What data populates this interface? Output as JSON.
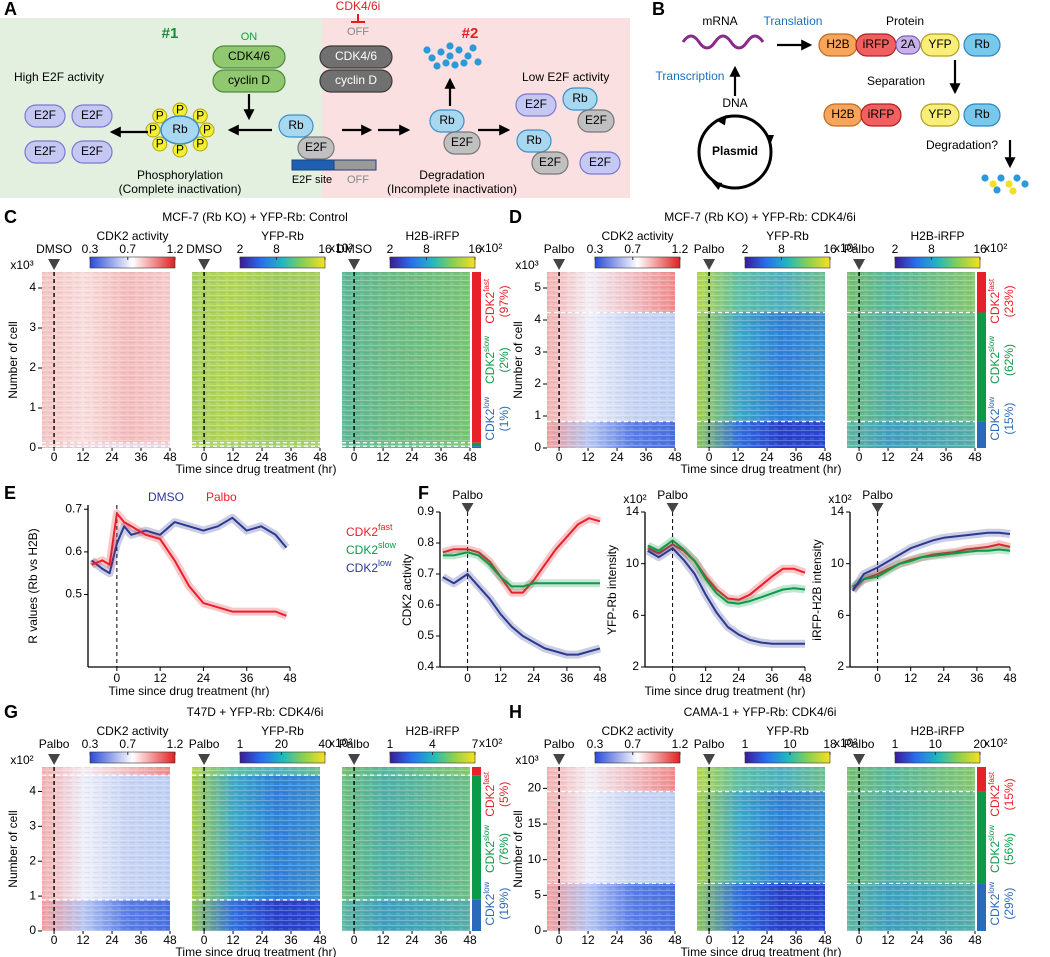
{
  "panels": {
    "A": {
      "label": "A",
      "region_1": "#1",
      "region_2": "#2",
      "on": "ON",
      "inhibitor": "CDK4/6i",
      "off": "OFF",
      "cdk": "CDK4/6",
      "cyclin": "cyclin D",
      "high": "High E2F activity",
      "low": "Low E2F activity",
      "e2f": "E2F",
      "rb": "Rb",
      "p": "P",
      "phosphorylation": "Phosphorylation",
      "complete": "(Complete inactivation)",
      "degradation": "Degradation",
      "incomplete": "(Incomplete inactivation)",
      "e2f_site": "E2F site",
      "site_off": "OFF"
    },
    "B": {
      "label": "B",
      "mrna": "mRNA",
      "translation": "Translation",
      "protein": "Protein",
      "h2b": "H2B",
      "irfp": "iRFP",
      "p2a": "2A",
      "yfp": "YFP",
      "rb": "Rb",
      "transcription": "Transcription",
      "dna": "DNA",
      "plasmid": "Plasmid",
      "separation": "Separation",
      "degradation": "Degradation?"
    },
    "C": {
      "label": "C",
      "title": "MCF-7 (Rb KO) + YFP-Rb: Control",
      "treatment": "DMSO",
      "y_label": "Number of cell",
      "y_multiplier": "x10³",
      "ylim": [
        0,
        4.4
      ],
      "yticks": [
        0,
        1,
        2,
        3,
        4
      ],
      "xlim": [
        -5,
        48
      ],
      "xticks": [
        0,
        12,
        24,
        36,
        48
      ],
      "x_label": "Time since drug treatment (hr)",
      "maps": [
        {
          "name": "CDK2 activity",
          "ticks": [
            0.3,
            0.7,
            1.2
          ]
        },
        {
          "name": "YFP-Rb",
          "ticks": [
            2,
            8,
            16
          ],
          "multiplier": "x10²"
        },
        {
          "name": "H2B-iRFP",
          "ticks": [
            2,
            8,
            16
          ],
          "multiplier": "x10²"
        }
      ],
      "groups": [
        {
          "base": "CDK2",
          "sup": "fast",
          "share": 97,
          "share_label": "(97%)",
          "color": "#e8202a"
        },
        {
          "base": "CDK2",
          "sup": "slow",
          "share": 2,
          "share_label": "(2%)",
          "color": "#0a9a48"
        },
        {
          "base": "CDK2",
          "sup": "low",
          "share": 1,
          "share_label": "(1%)",
          "color": "#2a6ab8"
        }
      ]
    },
    "D": {
      "label": "D",
      "title": "MCF-7 (Rb KO) + YFP-Rb: CDK4/6i",
      "treatment": "Palbo",
      "y_label": "Number of cell",
      "y_multiplier": "x10³",
      "ylim": [
        0,
        5.5
      ],
      "yticks": [
        0,
        1,
        2,
        3,
        4,
        5
      ],
      "xlim": [
        -5,
        48
      ],
      "xticks": [
        0,
        12,
        24,
        36,
        48
      ],
      "x_label": "Time since drug treatment (hr)",
      "maps": [
        {
          "name": "CDK2 activity",
          "ticks": [
            0.3,
            0.7,
            1.2
          ]
        },
        {
          "name": "YFP-Rb",
          "ticks": [
            2,
            8,
            16
          ],
          "multiplier": "x10²"
        },
        {
          "name": "H2B-iRFP",
          "ticks": [
            2,
            8,
            16
          ],
          "multiplier": "x10²"
        }
      ],
      "groups": [
        {
          "base": "CDK2",
          "sup": "fast",
          "share": 23,
          "share_label": "(23%)",
          "color": "#e8202a"
        },
        {
          "base": "CDK2",
          "sup": "slow",
          "share": 62,
          "share_label": "(62%)",
          "color": "#0a9a48"
        },
        {
          "base": "CDK2",
          "sup": "low",
          "share": 15,
          "share_label": "(15%)",
          "color": "#2a6ab8"
        }
      ]
    },
    "E": {
      "label": "E",
      "y_label": "R values (Rb vs H2B)",
      "x_label": "Time since drug treatment (hr)",
      "xlim": [
        -8,
        48
      ],
      "xticks": [
        0,
        12,
        24,
        36,
        48
      ],
      "ylim": [
        0.33,
        0.71
      ],
      "yticks": [
        0.5,
        0.6,
        0.7
      ],
      "x": [
        -7,
        -4,
        -2,
        0,
        2,
        4,
        8,
        12,
        16,
        20,
        24,
        28,
        32,
        36,
        40,
        44,
        47
      ],
      "series": [
        {
          "name": "DMSO",
          "color": "#2b3990",
          "values": [
            0.58,
            0.56,
            0.55,
            0.62,
            0.66,
            0.64,
            0.65,
            0.64,
            0.67,
            0.66,
            0.65,
            0.66,
            0.68,
            0.65,
            0.66,
            0.64,
            0.61
          ]
        },
        {
          "name": "Palbo",
          "color": "#e8202a",
          "values": [
            0.57,
            0.58,
            0.57,
            0.69,
            0.67,
            0.66,
            0.64,
            0.63,
            0.58,
            0.52,
            0.48,
            0.47,
            0.46,
            0.46,
            0.46,
            0.46,
            0.45
          ]
        }
      ]
    },
    "F": {
      "label": "F",
      "treatment": "Palbo",
      "x_label": "Time since drug treatment (hr)",
      "legend": [
        {
          "base": "CDK2",
          "sup": "fast",
          "color": "#e8202a"
        },
        {
          "base": "CDK2",
          "sup": "slow",
          "color": "#0a9a48"
        },
        {
          "base": "CDK2",
          "sup": "low",
          "color": "#2b3990"
        }
      ],
      "plots": [
        {
          "y_label": "CDK2 activity",
          "xlim": [
            -10,
            48
          ],
          "xticks": [
            0,
            12,
            24,
            36,
            48
          ],
          "ylim": [
            0.4,
            0.9
          ],
          "yticks": [
            0.4,
            0.5,
            0.6,
            0.7,
            0.8,
            0.9
          ],
          "x": [
            -9,
            -5,
            0,
            4,
            8,
            12,
            16,
            20,
            24,
            28,
            32,
            36,
            40,
            44,
            48
          ],
          "series": [
            {
              "values": [
                0.77,
                0.78,
                0.78,
                0.77,
                0.74,
                0.69,
                0.64,
                0.64,
                0.68,
                0.73,
                0.78,
                0.82,
                0.86,
                0.88,
                0.87
              ]
            },
            {
              "values": [
                0.76,
                0.76,
                0.77,
                0.76,
                0.73,
                0.69,
                0.66,
                0.66,
                0.67,
                0.67,
                0.67,
                0.67,
                0.67,
                0.67,
                0.67
              ]
            },
            {
              "values": [
                0.69,
                0.67,
                0.7,
                0.66,
                0.62,
                0.57,
                0.53,
                0.5,
                0.48,
                0.46,
                0.45,
                0.44,
                0.44,
                0.45,
                0.46
              ]
            }
          ]
        },
        {
          "y_label": "YFP-Rb intensity",
          "multiplier": "x10²",
          "xlim": [
            -10,
            48
          ],
          "xticks": [
            0,
            12,
            24,
            36,
            48
          ],
          "ylim": [
            2,
            14
          ],
          "yticks": [
            2,
            6,
            10,
            14
          ],
          "x": [
            -9,
            -5,
            0,
            4,
            8,
            12,
            16,
            20,
            24,
            28,
            32,
            36,
            40,
            44,
            48
          ],
          "series": [
            {
              "values": [
                11.2,
                10.8,
                11.5,
                11,
                10.2,
                9,
                8,
                7.3,
                7.2,
                7.6,
                8.3,
                9,
                9.6,
                9.6,
                9.3
              ]
            },
            {
              "values": [
                11.4,
                11,
                11.8,
                11.1,
                10.2,
                8.8,
                7.7,
                7,
                6.9,
                7.1,
                7.4,
                7.7,
                8,
                8.1,
                8
              ]
            },
            {
              "values": [
                11,
                10.5,
                11.2,
                10.3,
                9.2,
                7.6,
                6.2,
                5.1,
                4.5,
                4.1,
                3.9,
                3.8,
                3.8,
                3.8,
                3.8
              ]
            }
          ]
        },
        {
          "y_label": "iRFP-H2B intensity",
          "multiplier": "x10²",
          "xlim": [
            -10,
            48
          ],
          "xticks": [
            0,
            12,
            24,
            36,
            48
          ],
          "ylim": [
            2,
            14
          ],
          "yticks": [
            2,
            6,
            10,
            14
          ],
          "x": [
            -9,
            -5,
            0,
            4,
            8,
            12,
            16,
            20,
            24,
            28,
            32,
            36,
            40,
            44,
            48
          ],
          "series": [
            {
              "values": [
                8,
                8.8,
                9.2,
                9.6,
                10,
                10.3,
                10.5,
                10.7,
                10.8,
                10.9,
                11.1,
                11.2,
                11.3,
                11.5,
                11.3
              ]
            },
            {
              "values": [
                8.2,
                8.8,
                9,
                9.5,
                10,
                10.2,
                10.5,
                10.6,
                10.7,
                10.8,
                10.9,
                11,
                11,
                11.1,
                11
              ]
            },
            {
              "values": [
                7.9,
                9.2,
                9.7,
                10.2,
                10.7,
                11.2,
                11.5,
                11.8,
                12,
                12.1,
                12.2,
                12.3,
                12.4,
                12.4,
                12.3
              ]
            }
          ]
        }
      ]
    },
    "G": {
      "label": "G",
      "title": "T47D + YFP-Rb: CDK4/6i",
      "treatment": "Palbo",
      "y_label": "Number of cell",
      "y_multiplier": "x10²",
      "ylim": [
        0,
        4.7
      ],
      "yticks": [
        0,
        1,
        2,
        3,
        4
      ],
      "xlim": [
        -5,
        48
      ],
      "xticks": [
        0,
        12,
        24,
        36,
        48
      ],
      "x_label": "Time since drug treatment (hr)",
      "maps": [
        {
          "name": "CDK2 activity",
          "ticks": [
            0.3,
            0.7,
            1.2
          ]
        },
        {
          "name": "YFP-Rb",
          "ticks": [
            1,
            20,
            40
          ],
          "multiplier": "x10²"
        },
        {
          "name": "H2B-iRFP",
          "ticks": [
            1,
            4,
            7
          ],
          "multiplier": "x10²"
        }
      ],
      "groups": [
        {
          "base": "CDK2",
          "sup": "fast",
          "share": 5,
          "share_label": "(5%)",
          "color": "#e8202a"
        },
        {
          "base": "CDK2",
          "sup": "slow",
          "share": 76,
          "share_label": "(76%)",
          "color": "#0a9a48"
        },
        {
          "base": "CDK2",
          "sup": "low",
          "share": 19,
          "share_label": "(19%)",
          "color": "#2a6ab8"
        }
      ]
    },
    "H": {
      "label": "H",
      "title": "CAMA-1 + YFP-Rb: CDK4/6i",
      "treatment": "Palbo",
      "y_label": "Number of cell",
      "y_multiplier": "x10³",
      "ylim": [
        0,
        23
      ],
      "yticks": [
        0,
        5,
        10,
        15,
        20
      ],
      "xlim": [
        -5,
        48
      ],
      "xticks": [
        0,
        12,
        24,
        36,
        48
      ],
      "x_label": "Time since drug treatment (hr)",
      "maps": [
        {
          "name": "CDK2 activity",
          "ticks": [
            0.3,
            0.7,
            1.2
          ]
        },
        {
          "name": "YFP-Rb",
          "ticks": [
            1,
            10,
            18
          ],
          "multiplier": "x10²"
        },
        {
          "name": "H2B-iRFP",
          "ticks": [
            1,
            10,
            20
          ],
          "multiplier": "x10²"
        }
      ],
      "groups": [
        {
          "base": "CDK2",
          "sup": "fast",
          "share": 15,
          "share_label": "(15%)",
          "color": "#e8202a"
        },
        {
          "base": "CDK2",
          "sup": "slow",
          "share": 56,
          "share_label": "(56%)",
          "color": "#0a9a48"
        },
        {
          "base": "CDK2",
          "sup": "low",
          "share": 29,
          "share_label": "(29%)",
          "color": "#2a6ab8"
        }
      ]
    }
  }
}
